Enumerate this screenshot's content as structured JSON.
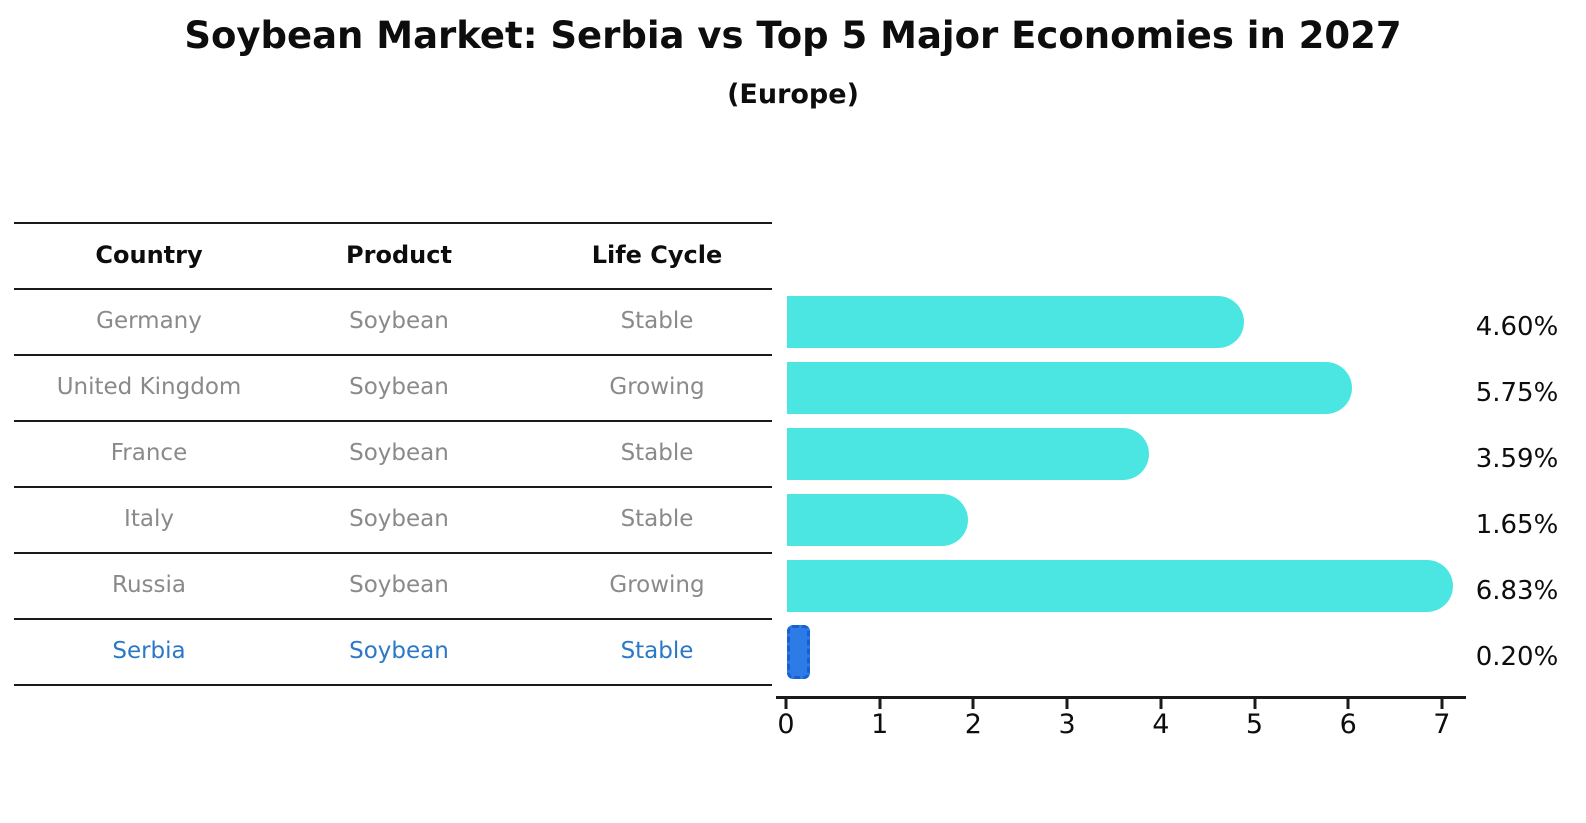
{
  "title": "Soybean Market: Serbia vs Top 5 Major Economies in 2027",
  "subtitle": "(Europe)",
  "table": {
    "headers": [
      "Country",
      "Product",
      "Life Cycle"
    ],
    "rows": [
      {
        "country": "Germany",
        "product": "Soybean",
        "life_cycle": "Stable"
      },
      {
        "country": "United Kingdom",
        "product": "Soybean",
        "life_cycle": "Growing"
      },
      {
        "country": "France",
        "product": "Soybean",
        "life_cycle": "Stable"
      },
      {
        "country": "Italy",
        "product": "Soybean",
        "life_cycle": "Stable"
      },
      {
        "country": "Russia",
        "product": "Soybean",
        "life_cycle": "Growing"
      },
      {
        "country": "Serbia",
        "product": "Soybean",
        "life_cycle": "Stable"
      }
    ],
    "highlight_row_index": 5
  },
  "chart_data": {
    "type": "bar",
    "orientation": "horizontal",
    "categories": [
      "Germany",
      "United Kingdom",
      "France",
      "Italy",
      "Russia",
      "Serbia"
    ],
    "values": [
      4.6,
      5.75,
      3.59,
      1.65,
      6.83,
      0.2
    ],
    "value_labels": [
      "4.60%",
      "5.75%",
      "3.59%",
      "1.65%",
      "6.83%",
      "0.20%"
    ],
    "xlim": [
      0,
      7
    ],
    "xticks": [
      "0",
      "1",
      "2",
      "3",
      "4",
      "5",
      "6",
      "7"
    ],
    "grid": false,
    "legend": false,
    "bar_color": "#4BE6E1",
    "highlight_index": 5,
    "highlight_fill": "#2D7BE6",
    "highlight_border": "#1A5FD2",
    "highlight_text_color": "#2B78C8",
    "muted_text_color": "#8a8a8a",
    "text_color": "#0d0d0d"
  }
}
